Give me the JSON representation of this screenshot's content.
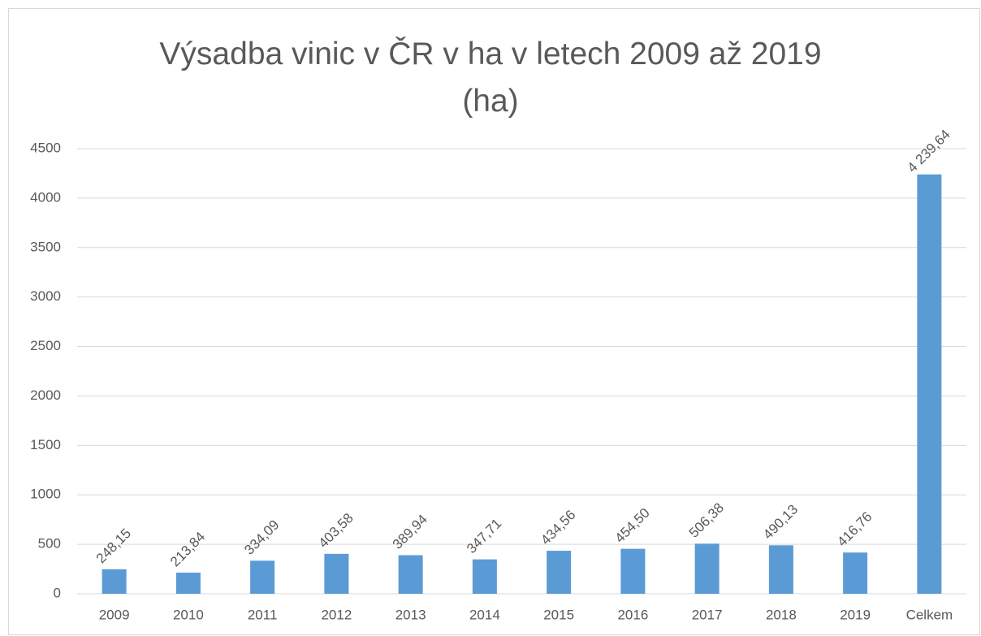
{
  "chart_data": {
    "type": "bar",
    "title": "Výsadba vinic v ČR v ha v letech 2009 až 2019 (ha)",
    "categories": [
      "2009",
      "2010",
      "2011",
      "2012",
      "2013",
      "2014",
      "2015",
      "2016",
      "2017",
      "2018",
      "2019",
      "Celkem"
    ],
    "values": [
      248.15,
      213.84,
      334.09,
      403.58,
      389.94,
      347.71,
      434.56,
      454.5,
      506.38,
      490.13,
      416.76,
      4239.64
    ],
    "value_labels": [
      "248,15",
      "213,84",
      "334,09",
      "403,58",
      "389,94",
      "347,71",
      "434,56",
      "454,50",
      "506,38",
      "490,13",
      "416,76",
      "4 239,64"
    ],
    "color": "#5b9bd5",
    "ylim": [
      0,
      4500
    ],
    "yticks": [
      0,
      500,
      1000,
      1500,
      2000,
      2500,
      3000,
      3500,
      4000,
      4500
    ],
    "grid": true
  }
}
